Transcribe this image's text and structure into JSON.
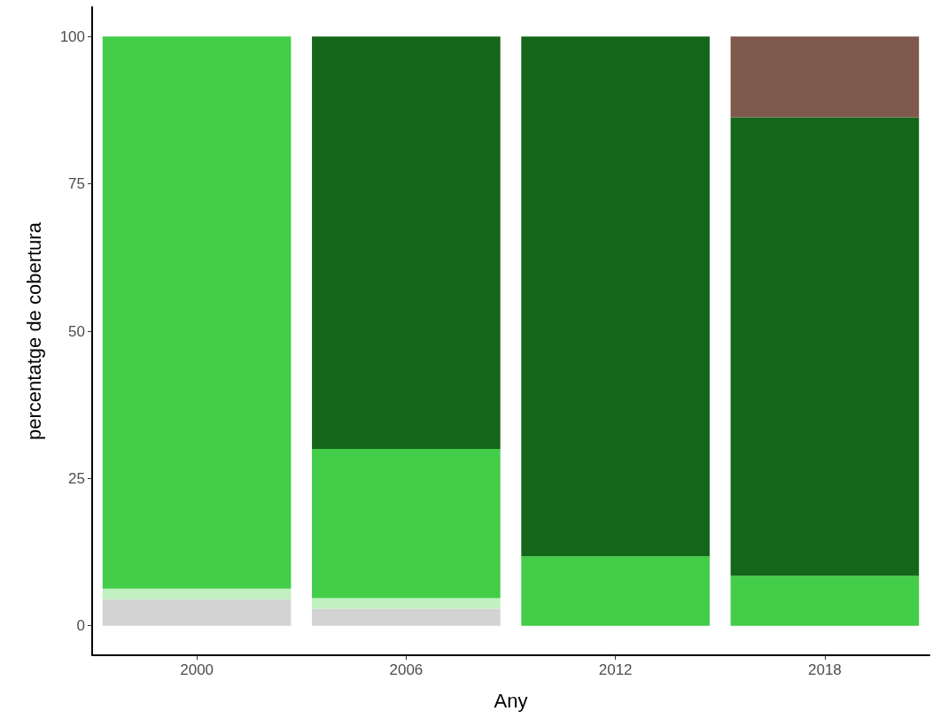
{
  "chart_data": {
    "type": "bar",
    "stacked": true,
    "xlabel": "Any",
    "ylabel": "percentatge de cobertura",
    "categories": [
      "2000",
      "2006",
      "2012",
      "2018"
    ],
    "series": [
      {
        "color": "#d3d3d3",
        "values": [
          4.5,
          2.9,
          0,
          0
        ]
      },
      {
        "color": "#c1f0c1",
        "values": [
          1.8,
          1.8,
          0,
          0
        ]
      },
      {
        "color": "#43cd48",
        "values": [
          93.7,
          25.3,
          11.8,
          8.5
        ]
      },
      {
        "color": "#146719",
        "values": [
          0,
          70,
          88.2,
          77.8
        ]
      },
      {
        "color": "#7f5a4c",
        "values": [
          0,
          0,
          0,
          13.7
        ]
      }
    ],
    "ylim": [
      -5,
      105
    ],
    "yticks": [
      0,
      25,
      50,
      75,
      100
    ],
    "grid": false
  }
}
